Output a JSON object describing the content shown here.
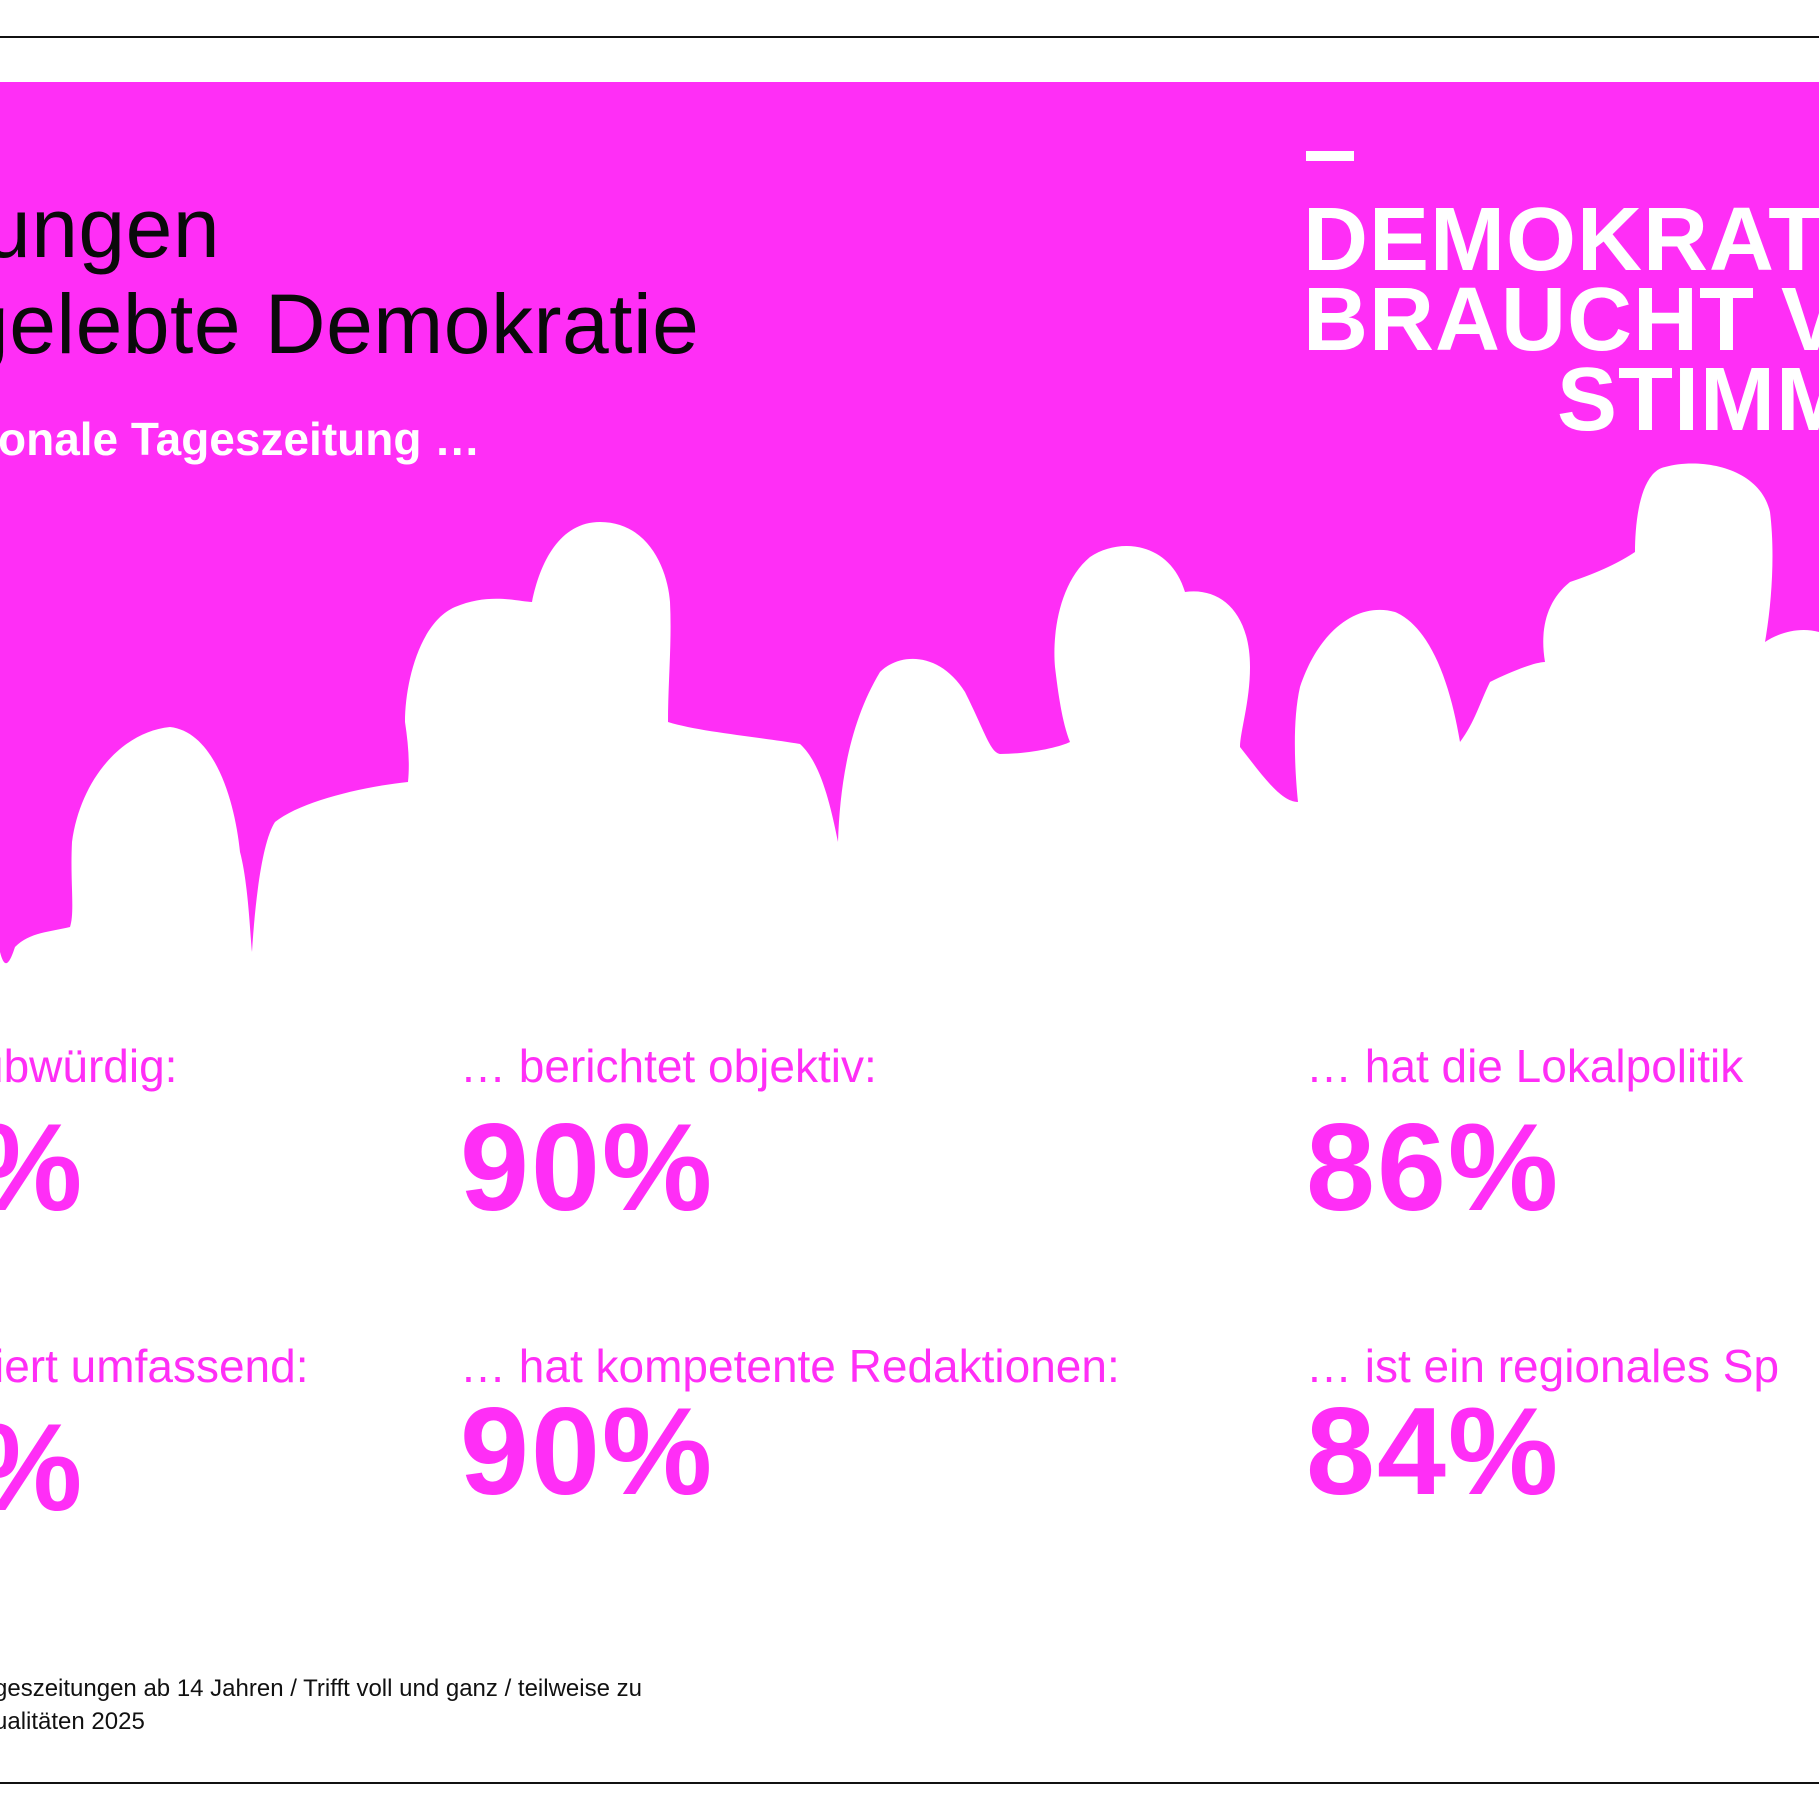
{
  "colors": {
    "accent": "#ff2ef6",
    "text": "#0a0a0a",
    "background": "#ffffff"
  },
  "header": {
    "title_line1": "ungen",
    "title_line2": "gelebte Demokratie",
    "subtitle": "onale Tageszeitung …"
  },
  "badge": {
    "line1": "DEMOKRAT",
    "line2": "BRAUCHT V",
    "line3": "STIMM"
  },
  "stats": [
    {
      "label": "ubwürdig:",
      "value": "%"
    },
    {
      "label": "… berichtet objektiv:",
      "value": "90%"
    },
    {
      "label": "… hat die Lokalpolitik",
      "value": "86%"
    },
    {
      "label": "iert umfassend:",
      "value": "%"
    },
    {
      "label": "… hat kompetente Redaktionen:",
      "value": "90%"
    },
    {
      "label": "… ist ein regionales Sp",
      "value": "84%"
    }
  ],
  "footnote": {
    "line1": "geszeitungen ab 14 Jahren / Trifft voll und ganz / teilweise zu",
    "line2": "ualitäten 2025"
  }
}
